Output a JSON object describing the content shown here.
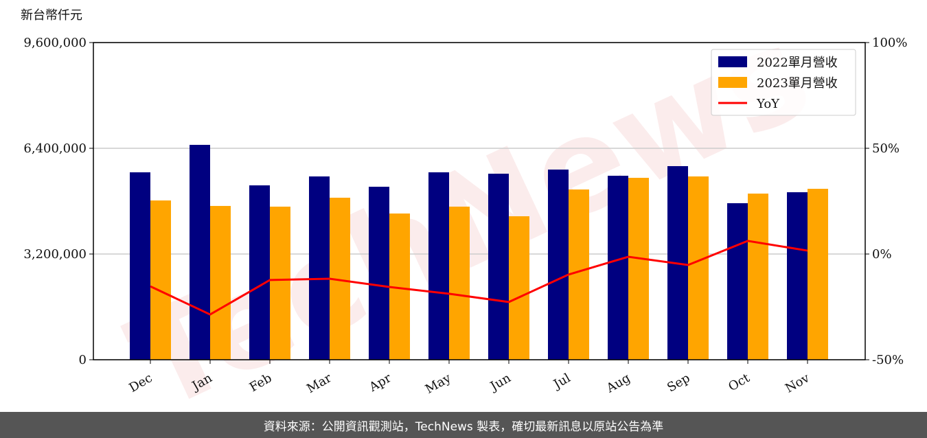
{
  "chart_data": {
    "type": "bar",
    "y_axis_label": "新台幣仟元",
    "watermark": "TechNews",
    "categories": [
      "Dec",
      "Jan",
      "Feb",
      "Mar",
      "Apr",
      "May",
      "Jun",
      "Jul",
      "Aug",
      "Sep",
      "Oct",
      "Nov"
    ],
    "series": [
      {
        "name": "2022單月營收",
        "color": "#000080",
        "values": [
          5673000,
          6504000,
          5278000,
          5548000,
          5236000,
          5673000,
          5631000,
          5756000,
          5569000,
          5860000,
          4738000,
          5070000
        ]
      },
      {
        "name": "2023單月營收",
        "color": "#ffa500",
        "values": [
          4821000,
          4655000,
          4634000,
          4904000,
          4426000,
          4634000,
          4343000,
          5153000,
          5506000,
          5548000,
          5029000,
          5174000
        ]
      },
      {
        "name": "YoY",
        "color": "#ff0000",
        "type": "line",
        "axis": "y2",
        "values": [
          -15.3,
          -28.6,
          -12.3,
          -11.7,
          -15.6,
          -18.8,
          -22.7,
          -9.7,
          -1.3,
          -5.2,
          6.2,
          1.6
        ]
      }
    ],
    "ylim": [
      0,
      9600000
    ],
    "yticks": [
      0,
      {
        "value": 3200000,
        "label": "3,200,000"
      },
      {
        "value": 6400000,
        "label": "6,400,000"
      },
      {
        "value": 9600000,
        "label": "9,600,000"
      }
    ],
    "y2lim": [
      -50,
      100
    ],
    "y2ticks": [
      {
        "value": -50,
        "label": "-50%"
      },
      {
        "value": 0,
        "label": "0%"
      },
      {
        "value": 50,
        "label": "50%"
      },
      {
        "value": 100,
        "label": "100%"
      }
    ],
    "grid": true,
    "legend": "upper-right"
  },
  "footer": "資料來源：公開資訊觀測站，TechNews 製表，確切最新訊息以原站公告為準"
}
